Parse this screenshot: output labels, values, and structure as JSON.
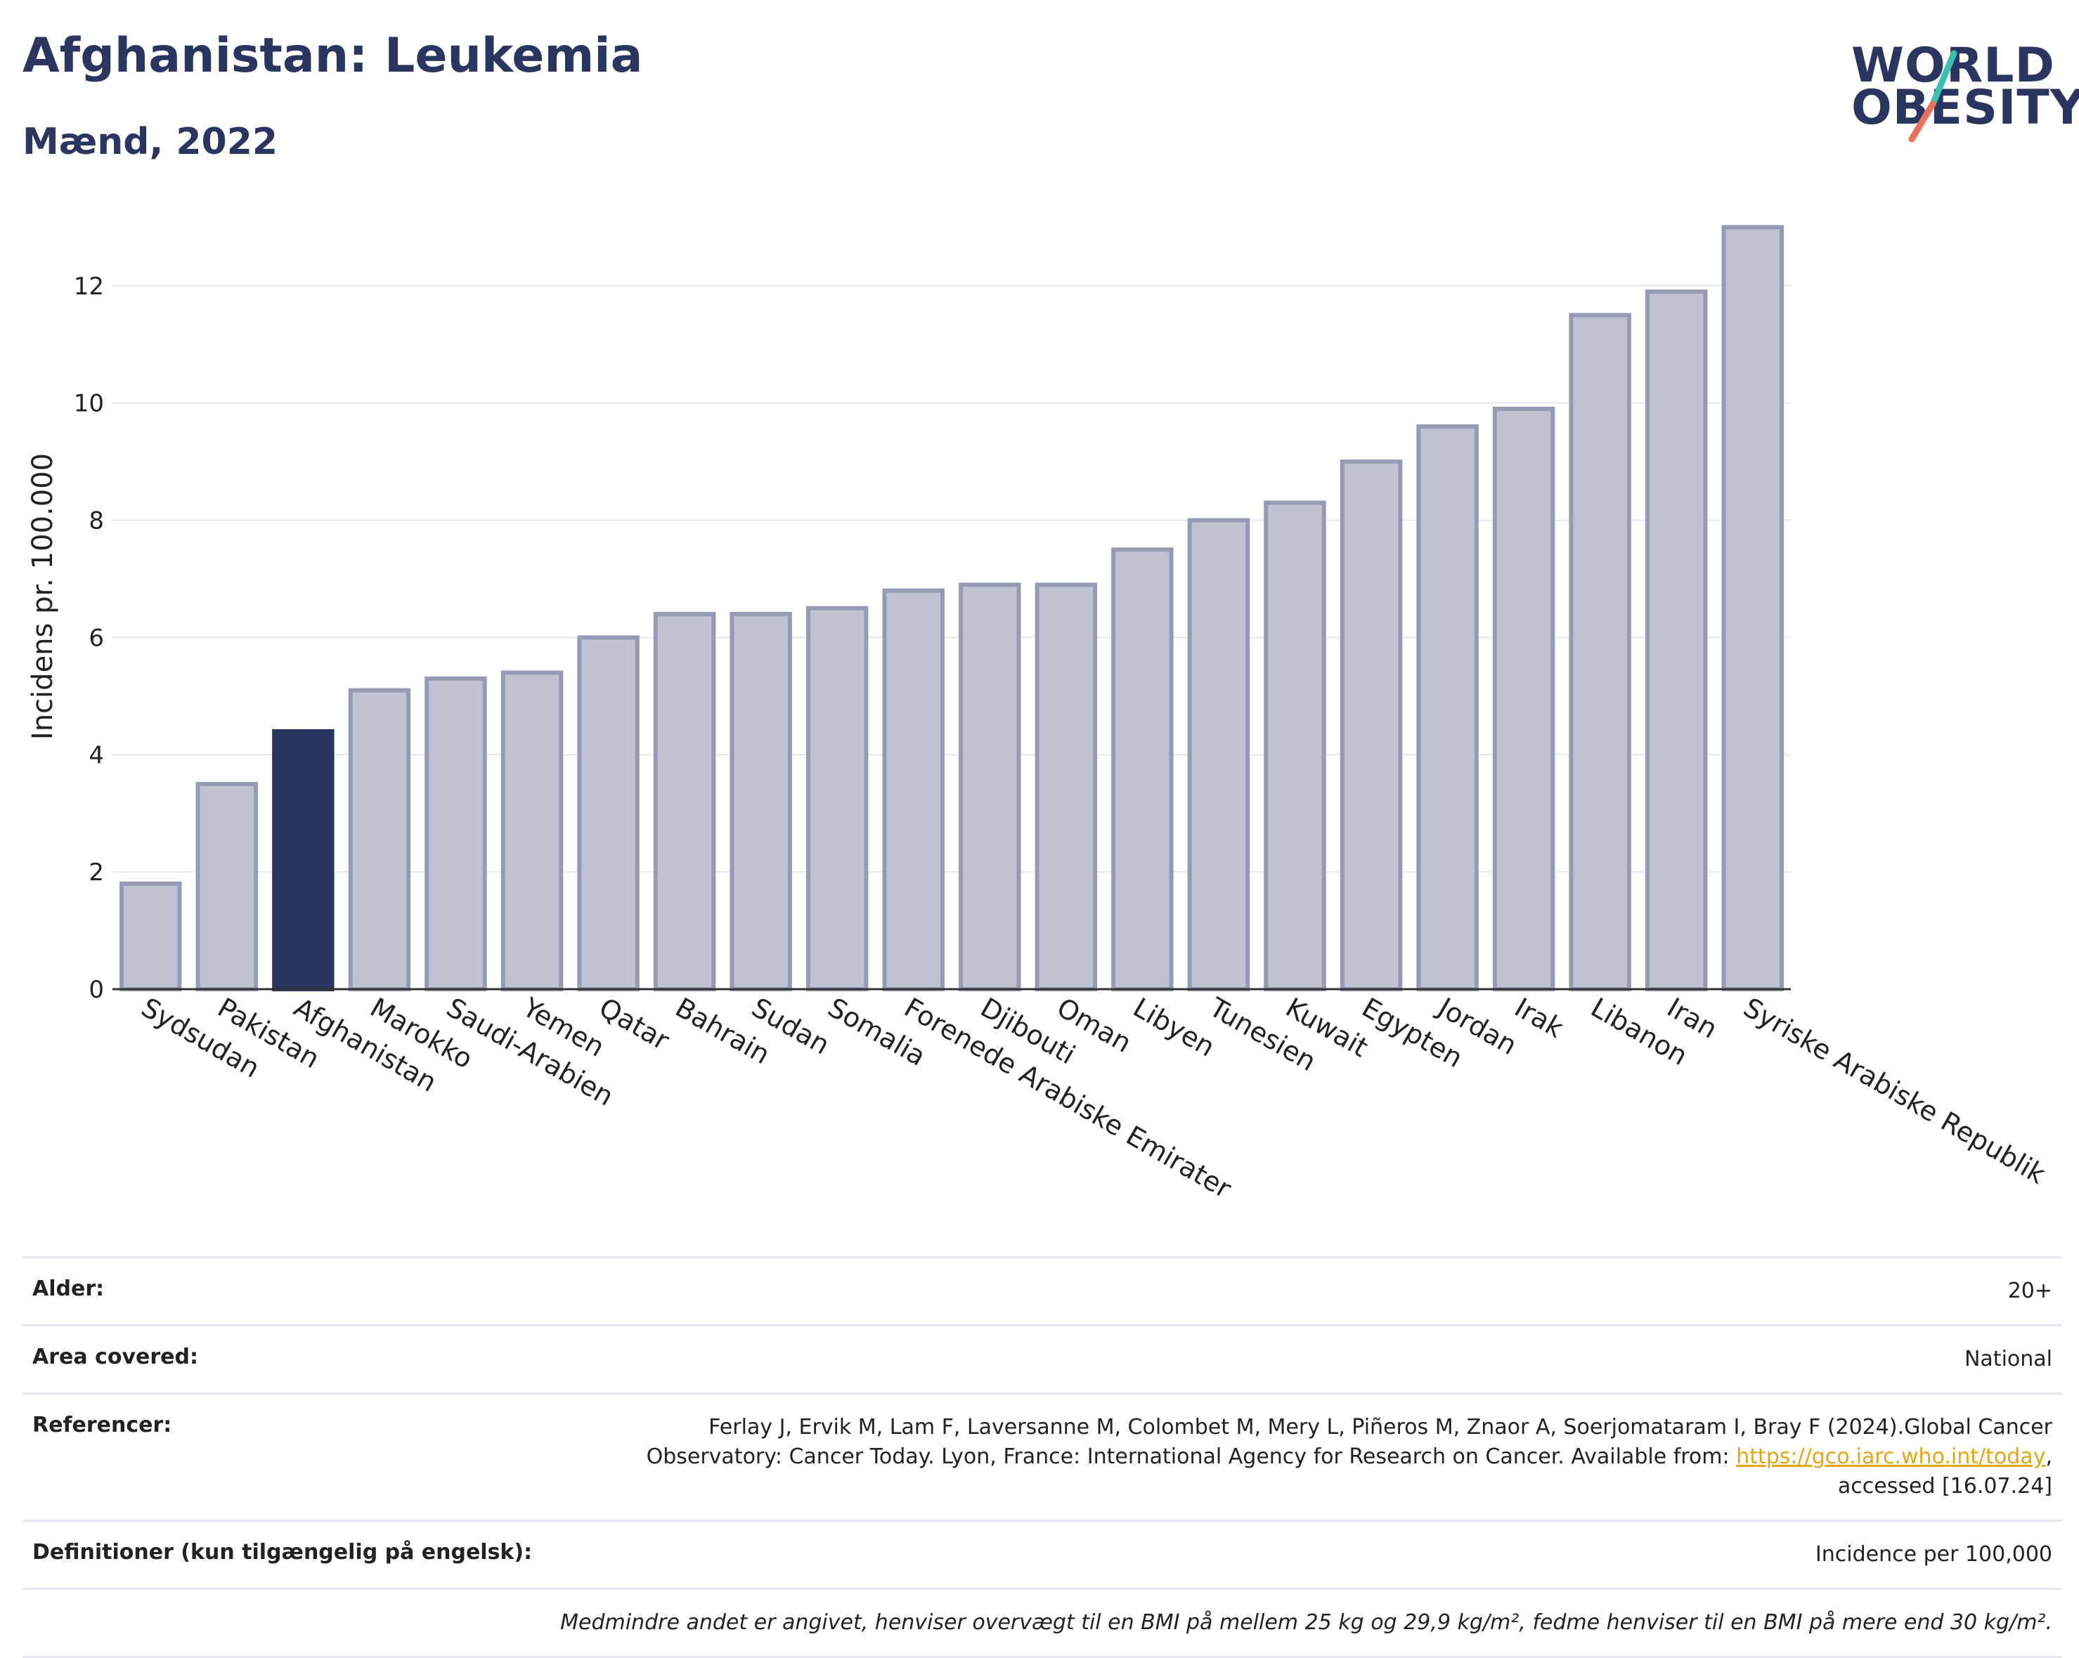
{
  "title": "Afghanistan: Leukemia",
  "subtitle": "Mænd, 2022",
  "logo": {
    "line1": "WORLD",
    "line2": "OBESITY",
    "slash_colors": [
      "#3cbfb4",
      "#e9715b"
    ]
  },
  "colors": {
    "highlight": "#2b3660",
    "bar": "#bfc2d0",
    "bar_edge": "#969bb4",
    "axis": "#333333",
    "grid": "#e6e8f2"
  },
  "chart_data": {
    "type": "bar",
    "ylabel": "Incidens pr. 100.000",
    "ylim": [
      0,
      13.4
    ],
    "yticks": [
      0,
      2,
      4,
      6,
      8,
      10,
      12
    ],
    "highlight": "Afghanistan",
    "grid": true,
    "categories": [
      "Sydsudan",
      "Pakistan",
      "Afghanistan",
      "Marokko",
      "Saudi-Arabien",
      "Yemen",
      "Qatar",
      "Bahrain",
      "Sudan",
      "Somalia",
      "Forenede Arabiske Emirater",
      "Djibouti",
      "Oman",
      "Libyen",
      "Tunesien",
      "Kuwait",
      "Egypten",
      "Jordan",
      "Irak",
      "Libanon",
      "Iran",
      "Syriske Arabiske Republik"
    ],
    "values": [
      1.8,
      3.5,
      4.4,
      5.1,
      5.3,
      5.4,
      6.0,
      6.4,
      6.4,
      6.5,
      6.8,
      6.9,
      6.9,
      7.5,
      8.0,
      8.3,
      9.0,
      9.6,
      9.9,
      11.5,
      11.9,
      13.0
    ]
  },
  "info": {
    "age_label": "Alder:",
    "age_value": "20+",
    "area_label": "Area covered:",
    "area_value": "National",
    "ref_label": "Referencer:",
    "ref_text_1": "Ferlay J, Ervik M, Lam F, Laversanne M, Colombet M, Mery L, Piñeros M, Znaor A, Soerjomataram I, Bray F (2024).Global Cancer Observatory: Cancer Today. Lyon, France: International Agency for Research on Cancer. Available from: ",
    "ref_link": "https://gco.iarc.who.int/today",
    "ref_text_2": ", accessed [16.07.24]",
    "def_label": "Definitioner (kun tilgængelig på engelsk):",
    "def_value": "Incidence per 100,000",
    "note": "Medmindre andet er angivet, henviser overvægt til en BMI på mellem 25 kg og 29,9 kg/m², fedme henviser til en BMI på mere end 30 kg/m²."
  }
}
